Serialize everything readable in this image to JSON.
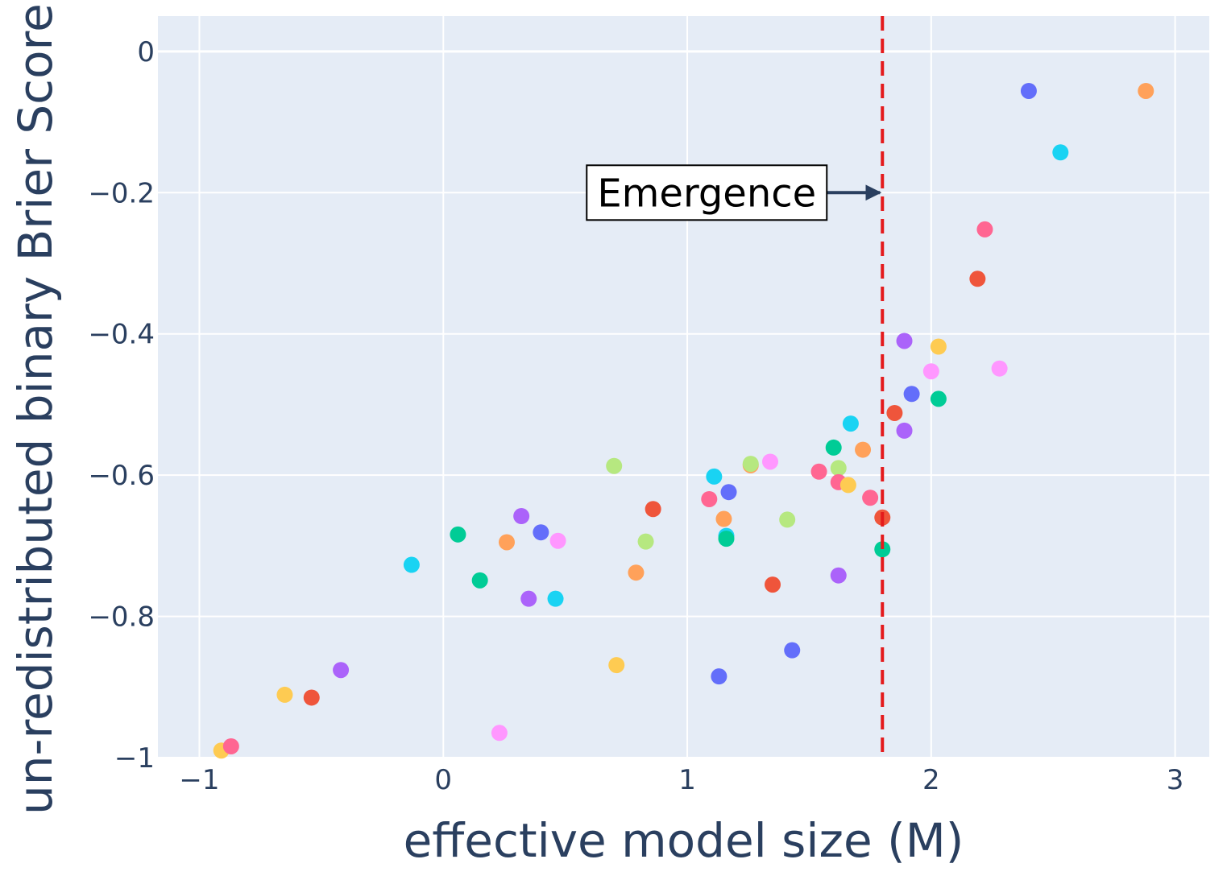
{
  "chart_data": {
    "type": "scatter",
    "title": "",
    "xlabel": "effective model size (M)",
    "ylabel": "un-redistributed binary Brier Score",
    "xlim": [
      -1.17,
      3.14
    ],
    "ylim": [
      -1.0,
      0.05
    ],
    "x_ticks": [
      -1,
      0,
      1,
      2,
      3
    ],
    "x_tick_labels": [
      "−1",
      "0",
      "1",
      "2",
      "3"
    ],
    "y_ticks": [
      0,
      -0.2,
      -0.4,
      -0.6,
      -0.8,
      -1
    ],
    "y_tick_labels": [
      "0",
      "−0.2",
      "−0.4",
      "−0.6",
      "−0.8",
      "−1"
    ],
    "grid": true,
    "colors": {
      "plot_bg": "#e5ecf6",
      "grid": "#ffffff",
      "threshold": "#e41a1c",
      "arrow": "#2a3f5f",
      "text": "#2a3f5f"
    },
    "threshold": {
      "x": 1.8,
      "style": "dashed"
    },
    "annotation": {
      "text": "Emergence",
      "arrow_to": [
        1.8,
        -0.2
      ],
      "text_at": [
        1.08,
        -0.2
      ]
    },
    "points": [
      {
        "x": -0.91,
        "y": -0.99,
        "color": "#FECB52"
      },
      {
        "x": -0.87,
        "y": -0.984,
        "color": "#FF6692"
      },
      {
        "x": -0.65,
        "y": -0.911,
        "color": "#FECB52"
      },
      {
        "x": -0.54,
        "y": -0.915,
        "color": "#EF553B"
      },
      {
        "x": -0.42,
        "y": -0.876,
        "color": "#AB63FA"
      },
      {
        "x": -0.13,
        "y": -0.727,
        "color": "#19D3F3"
      },
      {
        "x": 0.06,
        "y": -0.684,
        "color": "#00CC96"
      },
      {
        "x": 0.15,
        "y": -0.749,
        "color": "#00CC96"
      },
      {
        "x": 0.23,
        "y": -0.965,
        "color": "#FF97FF"
      },
      {
        "x": 0.26,
        "y": -0.695,
        "color": "#FFA15A"
      },
      {
        "x": 0.32,
        "y": -0.658,
        "color": "#AB63FA"
      },
      {
        "x": 0.35,
        "y": -0.775,
        "color": "#AB63FA"
      },
      {
        "x": 0.4,
        "y": -0.681,
        "color": "#636EFA"
      },
      {
        "x": 0.46,
        "y": -0.775,
        "color": "#19D3F3"
      },
      {
        "x": 0.47,
        "y": -0.693,
        "color": "#FF97FF"
      },
      {
        "x": 0.7,
        "y": -0.587,
        "color": "#B6E880"
      },
      {
        "x": 0.71,
        "y": -0.869,
        "color": "#FECB52"
      },
      {
        "x": 0.79,
        "y": -0.738,
        "color": "#FFA15A"
      },
      {
        "x": 0.83,
        "y": -0.694,
        "color": "#B6E880"
      },
      {
        "x": 0.86,
        "y": -0.648,
        "color": "#EF553B"
      },
      {
        "x": 1.09,
        "y": -0.634,
        "color": "#FF6692"
      },
      {
        "x": 1.11,
        "y": -0.602,
        "color": "#19D3F3"
      },
      {
        "x": 1.13,
        "y": -0.885,
        "color": "#636EFA"
      },
      {
        "x": 1.15,
        "y": -0.662,
        "color": "#FFA15A"
      },
      {
        "x": 1.16,
        "y": -0.686,
        "color": "#19D3F3"
      },
      {
        "x": 1.16,
        "y": -0.69,
        "color": "#00CC96"
      },
      {
        "x": 1.17,
        "y": -0.624,
        "color": "#636EFA"
      },
      {
        "x": 1.26,
        "y": -0.586,
        "color": "#FFA15A"
      },
      {
        "x": 1.26,
        "y": -0.584,
        "color": "#B6E880"
      },
      {
        "x": 1.34,
        "y": -0.581,
        "color": "#FF97FF"
      },
      {
        "x": 1.35,
        "y": -0.755,
        "color": "#EF553B"
      },
      {
        "x": 1.41,
        "y": -0.663,
        "color": "#B6E880"
      },
      {
        "x": 1.43,
        "y": -0.848,
        "color": "#636EFA"
      },
      {
        "x": 1.54,
        "y": -0.595,
        "color": "#FF6692"
      },
      {
        "x": 1.6,
        "y": -0.561,
        "color": "#00CC96"
      },
      {
        "x": 1.62,
        "y": -0.742,
        "color": "#AB63FA"
      },
      {
        "x": 1.62,
        "y": -0.59,
        "color": "#B6E880"
      },
      {
        "x": 1.62,
        "y": -0.61,
        "color": "#FF6692"
      },
      {
        "x": 1.66,
        "y": -0.614,
        "color": "#FECB52"
      },
      {
        "x": 1.67,
        "y": -0.527,
        "color": "#19D3F3"
      },
      {
        "x": 1.72,
        "y": -0.564,
        "color": "#FFA15A"
      },
      {
        "x": 1.75,
        "y": -0.632,
        "color": "#FF6692"
      },
      {
        "x": 1.8,
        "y": -0.66,
        "color": "#EF553B"
      },
      {
        "x": 1.8,
        "y": -0.705,
        "color": "#00CC96"
      },
      {
        "x": 1.85,
        "y": -0.512,
        "color": "#EF553B"
      },
      {
        "x": 1.89,
        "y": -0.537,
        "color": "#AB63FA"
      },
      {
        "x": 1.89,
        "y": -0.41,
        "color": "#AB63FA"
      },
      {
        "x": 1.92,
        "y": -0.485,
        "color": "#636EFA"
      },
      {
        "x": 2.0,
        "y": -0.453,
        "color": "#FF97FF"
      },
      {
        "x": 2.03,
        "y": -0.418,
        "color": "#FECB52"
      },
      {
        "x": 2.03,
        "y": -0.492,
        "color": "#00CC96"
      },
      {
        "x": 2.19,
        "y": -0.322,
        "color": "#EF553B"
      },
      {
        "x": 2.22,
        "y": -0.252,
        "color": "#FF6692"
      },
      {
        "x": 2.28,
        "y": -0.449,
        "color": "#FF97FF"
      },
      {
        "x": 2.4,
        "y": -0.056,
        "color": "#636EFA"
      },
      {
        "x": 2.53,
        "y": -0.143,
        "color": "#19D3F3"
      },
      {
        "x": 2.88,
        "y": -0.056,
        "color": "#FFA15A"
      }
    ]
  }
}
